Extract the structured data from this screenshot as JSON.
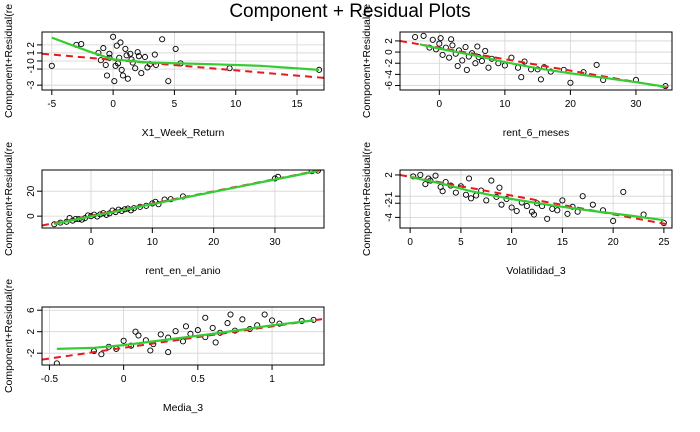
{
  "figure": {
    "title": "Component + Residual Plots"
  },
  "colors": {
    "points": "#000000",
    "fit_line": "#e41a1c",
    "smooth_line": "#33cc33",
    "grid": "#d3d3d3",
    "frame": "#000000"
  },
  "chart_data": [
    {
      "type": "scatter",
      "xlabel": "X1_Week_Return",
      "ylabel": "Component+Residual(re",
      "xlim": [
        -5.8,
        17.2
      ],
      "ylim": [
        -3.6,
        3.6
      ],
      "xticks": [
        -5,
        0,
        5,
        10,
        15
      ],
      "yticks": [
        -3,
        -1,
        0,
        1,
        2
      ],
      "grid": true,
      "points": [
        [
          -3,
          2
        ],
        [
          -2.6,
          2.1
        ],
        [
          -0.8,
          1.6
        ],
        [
          -0.3,
          0.9
        ],
        [
          -0.5,
          -1.8
        ],
        [
          0,
          3
        ],
        [
          0.2,
          -0.6
        ],
        [
          0.5,
          0.4
        ],
        [
          0.7,
          -1.1
        ],
        [
          1,
          1.5
        ],
        [
          1.2,
          -2.2
        ],
        [
          1.5,
          0.2
        ],
        [
          1.8,
          -0.9
        ],
        [
          2,
          1.1
        ],
        [
          2.3,
          -1.5
        ],
        [
          2.6,
          0.5
        ],
        [
          3,
          -0.4
        ],
        [
          3.4,
          0.8
        ],
        [
          4,
          2.7
        ],
        [
          5.1,
          1.5
        ],
        [
          -1,
          0.1
        ],
        [
          -0.6,
          -0.5
        ],
        [
          0.3,
          1.9
        ],
        [
          0.8,
          -1.8
        ],
        [
          1.4,
          0.9
        ],
        [
          2.8,
          -0.8
        ],
        [
          3.5,
          -0.5
        ],
        [
          4.5,
          -2.5
        ],
        [
          5.5,
          -0.3
        ],
        [
          9.5,
          -0.9
        ],
        [
          16.8,
          -1.1
        ],
        [
          -5,
          -0.6
        ],
        [
          -1.2,
          1
        ],
        [
          0.1,
          -2.5
        ],
        [
          0.6,
          2.3
        ],
        [
          1.6,
          -0.2
        ],
        [
          2.1,
          0.6
        ],
        [
          -0.3,
          0.4
        ],
        [
          0.4,
          -0.3
        ],
        [
          1.1,
          0.7
        ]
      ],
      "fit_line": [
        [
          -5.8,
          0.9
        ],
        [
          17.2,
          -2.1
        ]
      ],
      "smooth_line": [
        [
          -5,
          2.9
        ],
        [
          -2,
          1.2
        ],
        [
          0,
          0.2
        ],
        [
          3,
          -0.2
        ],
        [
          8,
          -0.4
        ],
        [
          12,
          -0.6
        ],
        [
          16.8,
          -1.1
        ]
      ]
    },
    {
      "type": "scatter",
      "xlabel": "rent_6_meses",
      "ylabel": "Component+Residual(re",
      "xlim": [
        -6,
        35.5
      ],
      "ylim": [
        -6.8,
        3.6
      ],
      "xticks": [
        0,
        10,
        20,
        30
      ],
      "yticks": [
        -6,
        -4,
        -2,
        0,
        2
      ],
      "grid": true,
      "points": [
        [
          -3.7,
          2.7
        ],
        [
          -2.4,
          2.9
        ],
        [
          -1,
          2.2
        ],
        [
          -0.5,
          0.5
        ],
        [
          0,
          1.5
        ],
        [
          0.5,
          -0.5
        ],
        [
          1,
          0.8
        ],
        [
          1.5,
          -1
        ],
        [
          2,
          1.2
        ],
        [
          2.5,
          -0.3
        ],
        [
          3,
          0.3
        ],
        [
          3.5,
          -1.5
        ],
        [
          4,
          0.9
        ],
        [
          4.5,
          -0.8
        ],
        [
          5,
          -0.2
        ],
        [
          5.5,
          -2
        ],
        [
          6,
          -0.9
        ],
        [
          6.5,
          -1.6
        ],
        [
          7,
          0.2
        ],
        [
          8,
          -1.2
        ],
        [
          9,
          -2
        ],
        [
          10,
          -2.4
        ],
        [
          11,
          -1
        ],
        [
          12,
          -2.8
        ],
        [
          13,
          -1.7
        ],
        [
          14,
          -3.1
        ],
        [
          15,
          -3.1
        ],
        [
          16,
          -2.7
        ],
        [
          17,
          -3.5
        ],
        [
          19,
          -3.2
        ],
        [
          22,
          -3.6
        ],
        [
          24,
          -2.3
        ],
        [
          25,
          -5
        ],
        [
          30,
          -5
        ],
        [
          34.5,
          -6.1
        ],
        [
          0.2,
          2.5
        ],
        [
          1.8,
          2.3
        ],
        [
          -1.5,
          0.8
        ],
        [
          2.8,
          -2.5
        ],
        [
          4.2,
          -3.2
        ],
        [
          5.8,
          1
        ],
        [
          7.5,
          -2.8
        ],
        [
          12.5,
          -4.5
        ],
        [
          15.5,
          -4.9
        ],
        [
          20,
          -5.5
        ]
      ],
      "fit_line": [
        [
          -6,
          2
        ],
        [
          35.5,
          -6.5
        ]
      ],
      "smooth_line": [
        [
          -3,
          1.4
        ],
        [
          0,
          0.6
        ],
        [
          5,
          -0.5
        ],
        [
          10,
          -1.8
        ],
        [
          15,
          -2.9
        ],
        [
          20,
          -3.8
        ],
        [
          25,
          -4.6
        ],
        [
          30,
          -5.4
        ],
        [
          34.5,
          -6.2
        ]
      ]
    },
    {
      "type": "scatter",
      "xlabel": "rent_en_el_anio",
      "ylabel": "Component+Residual(re",
      "xlim": [
        -8,
        38
      ],
      "ylim": [
        -9.5,
        37
      ],
      "xticks": [
        0,
        10,
        20,
        30
      ],
      "yticks": [
        0,
        20
      ],
      "grid": true,
      "points": [
        [
          -6,
          -6.5
        ],
        [
          -5,
          -5.2
        ],
        [
          -4,
          -4.5
        ],
        [
          -3,
          -3.6
        ],
        [
          -2.5,
          -2.3
        ],
        [
          -2,
          -2.4
        ],
        [
          -1,
          -1.6
        ],
        [
          -0.5,
          0.6
        ],
        [
          0,
          0
        ],
        [
          0.5,
          1.2
        ],
        [
          1,
          -0.3
        ],
        [
          1.5,
          1.4
        ],
        [
          2,
          2.4
        ],
        [
          3,
          2.2
        ],
        [
          3.5,
          4.5
        ],
        [
          4,
          3.3
        ],
        [
          5,
          4.2
        ],
        [
          5.5,
          5.5
        ],
        [
          6,
          6.1
        ],
        [
          7,
          6.4
        ],
        [
          8,
          7.5
        ],
        [
          9,
          8.3
        ],
        [
          10,
          10.2
        ],
        [
          10.5,
          11.5
        ],
        [
          11,
          9.6
        ],
        [
          12,
          13.3
        ],
        [
          13,
          13.6
        ],
        [
          15,
          15.8
        ],
        [
          30,
          30.2
        ],
        [
          30.5,
          31.5
        ],
        [
          36,
          36
        ],
        [
          37,
          36.5
        ],
        [
          -3.5,
          -1.5
        ],
        [
          2.5,
          1
        ],
        [
          6.5,
          4.7
        ],
        [
          -1.5,
          -2.8
        ],
        [
          4.5,
          5.2
        ]
      ],
      "fit_line": [
        [
          -8,
          -7.5
        ],
        [
          38,
          37.5
        ]
      ],
      "smooth_line": [
        [
          -6,
          -6.3
        ],
        [
          0,
          -0.1
        ],
        [
          5,
          4.7
        ],
        [
          10,
          9.6
        ],
        [
          15,
          14.6
        ],
        [
          20,
          19.5
        ],
        [
          25,
          24.4
        ],
        [
          30,
          29.4
        ],
        [
          37,
          36.2
        ]
      ]
    },
    {
      "type": "scatter",
      "xlabel": "Volatilidad_3",
      "ylabel": "Component+Residual(re",
      "xlim": [
        -1,
        25.8
      ],
      "ylim": [
        -5.5,
        2.7
      ],
      "xticks": [
        0,
        5,
        10,
        15,
        20,
        25
      ],
      "yticks": [
        -4,
        -2,
        -1,
        2
      ],
      "grid": true,
      "points": [
        [
          0.3,
          1.8
        ],
        [
          1,
          2
        ],
        [
          1.5,
          0.7
        ],
        [
          2,
          1.2
        ],
        [
          2.5,
          1.9
        ],
        [
          3,
          0.3
        ],
        [
          3.5,
          1
        ],
        [
          4,
          0.5
        ],
        [
          4.5,
          -0.5
        ],
        [
          5,
          0.4
        ],
        [
          5.5,
          -0.8
        ],
        [
          6,
          -1.3
        ],
        [
          6.5,
          -0.9
        ],
        [
          7,
          -0.2
        ],
        [
          7.5,
          -1.6
        ],
        [
          8,
          1.2
        ],
        [
          8.5,
          -1.1
        ],
        [
          9,
          -2.2
        ],
        [
          9.5,
          -1.4
        ],
        [
          10,
          -2.6
        ],
        [
          10.5,
          -3.1
        ],
        [
          11,
          -1.9
        ],
        [
          11.5,
          -2.4
        ],
        [
          12,
          -3.2
        ],
        [
          12.5,
          -2
        ],
        [
          13,
          -2.4
        ],
        [
          13.5,
          -4.2
        ],
        [
          14,
          -2.8
        ],
        [
          14.5,
          -3
        ],
        [
          15,
          -1.6
        ],
        [
          15.5,
          -3.5
        ],
        [
          16,
          -2.5
        ],
        [
          17,
          -1
        ],
        [
          18,
          -2.2
        ],
        [
          19,
          -3
        ],
        [
          20,
          -4.5
        ],
        [
          21,
          -0.4
        ],
        [
          23,
          -3.6
        ],
        [
          25,
          -4.8
        ],
        [
          5.8,
          1.5
        ],
        [
          3.2,
          -0.3
        ],
        [
          8.8,
          0.2
        ],
        [
          12.2,
          -3.6
        ],
        [
          16.5,
          -3.2
        ],
        [
          1.8,
          1.5
        ]
      ],
      "fit_line": [
        [
          -1,
          2
        ],
        [
          25.8,
          -5.1
        ]
      ],
      "smooth_line": [
        [
          0,
          1.7
        ],
        [
          3,
          0.8
        ],
        [
          6,
          -0.3
        ],
        [
          10,
          -1.4
        ],
        [
          14,
          -2.3
        ],
        [
          18,
          -3.1
        ],
        [
          22,
          -3.8
        ],
        [
          25,
          -4.4
        ]
      ]
    },
    {
      "type": "scatter",
      "xlabel": "Media_3",
      "ylabel": "Component+Residual(re",
      "xlim": [
        -0.55,
        1.35
      ],
      "ylim": [
        -4.2,
        6.6
      ],
      "xticks": [
        -0.5,
        0,
        0.5,
        1
      ],
      "yticks": [
        -2,
        2,
        6
      ],
      "grid": true,
      "points": [
        [
          -0.45,
          -3.9
        ],
        [
          -0.2,
          -1.6
        ],
        [
          -0.15,
          -2.2
        ],
        [
          -0.1,
          -0.8
        ],
        [
          -0.05,
          -1.2
        ],
        [
          0,
          0.3
        ],
        [
          0.05,
          -0.6
        ],
        [
          0.1,
          1.3
        ],
        [
          0.15,
          0.4
        ],
        [
          0.2,
          -0.3
        ],
        [
          0.25,
          1.5
        ],
        [
          0.3,
          0.9
        ],
        [
          0.35,
          2.1
        ],
        [
          0.4,
          0.2
        ],
        [
          0.45,
          1.6
        ],
        [
          0.5,
          2.3
        ],
        [
          0.55,
          1
        ],
        [
          0.6,
          2.7
        ],
        [
          0.65,
          1.8
        ],
        [
          0.7,
          3.6
        ],
        [
          0.75,
          2.2
        ],
        [
          0.8,
          4.3
        ],
        [
          0.85,
          2.5
        ],
        [
          0.9,
          3.2
        ],
        [
          0.95,
          5.2
        ],
        [
          1.0,
          4.1
        ],
        [
          1.05,
          3.5
        ],
        [
          1.2,
          4
        ],
        [
          1.28,
          4.2
        ],
        [
          0.3,
          -1.8
        ],
        [
          0.08,
          2
        ],
        [
          0.42,
          3
        ],
        [
          0.62,
          0
        ],
        [
          0.18,
          -1.5
        ],
        [
          0.55,
          4.6
        ],
        [
          0.72,
          5.2
        ]
      ],
      "fit_line": [
        [
          -0.55,
          -3.2
        ],
        [
          1.35,
          4.4
        ]
      ],
      "smooth_line": [
        [
          -0.45,
          -1.2
        ],
        [
          -0.2,
          -1
        ],
        [
          0,
          -0.5
        ],
        [
          0.2,
          0.2
        ],
        [
          0.4,
          0.9
        ],
        [
          0.6,
          1.6
        ],
        [
          0.8,
          2.4
        ],
        [
          1.0,
          3.2
        ],
        [
          1.28,
          4.1
        ]
      ]
    }
  ]
}
